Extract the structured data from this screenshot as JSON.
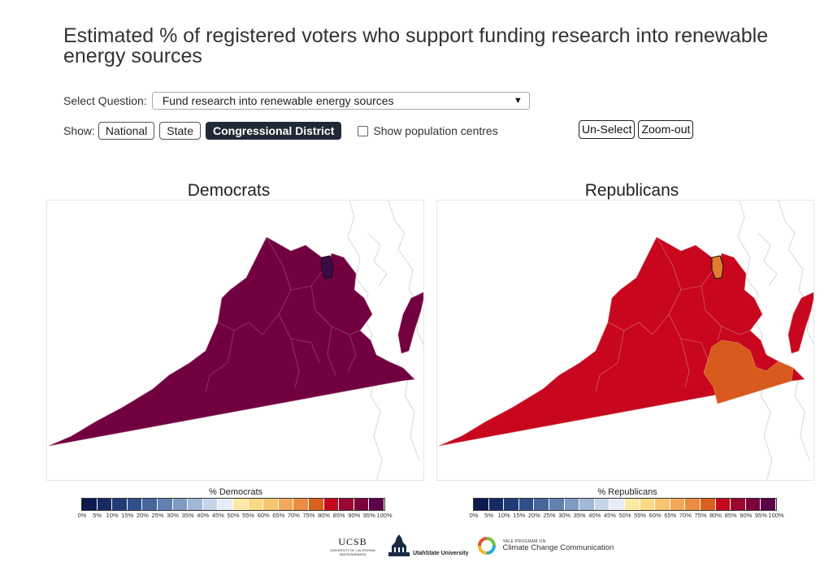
{
  "title": "Estimated % of registered voters who support funding research into renewable energy sources",
  "question": {
    "label": "Select Question:",
    "selected": "Fund research into renewable energy sources"
  },
  "show": {
    "label": "Show:",
    "options": [
      "National",
      "State",
      "Congressional District"
    ],
    "active": "Congressional District",
    "population_label": "Show population centres",
    "population_checked": false
  },
  "buttons": {
    "unselect": "Un-Select",
    "zoomout": "Zoom-out"
  },
  "maps": [
    {
      "title": "Democrats",
      "legend_title": "% Democrats",
      "region": "Virginia congressional districts",
      "fill_main": "#720040",
      "fill_highlight": "#3d0a48",
      "fill_other": "#720040"
    },
    {
      "title": "Republicans",
      "legend_title": "% Republicans",
      "region": "Virginia congressional districts",
      "fill_main": "#c8071f",
      "fill_highlight": "#e37b2c",
      "fill_other": "#d85a1c"
    }
  ],
  "legend": {
    "ticks": [
      "0%",
      "5%",
      "10%",
      "15%",
      "20%",
      "25%",
      "30%",
      "35%",
      "40%",
      "45%",
      "50%",
      "55%",
      "60%",
      "65%",
      "70%",
      "75%",
      "80%",
      "85%",
      "90%",
      "95%",
      "100%"
    ],
    "colors": [
      "#0c1a4d",
      "#162b63",
      "#213b77",
      "#2e4f8a",
      "#45659c",
      "#6281b1",
      "#7f9bc4",
      "#a0b7d6",
      "#c6d6e8",
      "#e6edf6",
      "#fde9a6",
      "#fbd985",
      "#f8c470",
      "#f3a85a",
      "#ec8b41",
      "#d9601f",
      "#c4081d",
      "#9d0630",
      "#7c003c",
      "#5c0047"
    ]
  },
  "logos": {
    "ucsb": "UCSB",
    "ucsb_sub": "UNIVERSITY OF CALIFORNIA SANTA BARBARA",
    "usu": "UtahState University",
    "yale_small": "YALE PROGRAM ON",
    "yale_name": "Climate Change Communication"
  }
}
